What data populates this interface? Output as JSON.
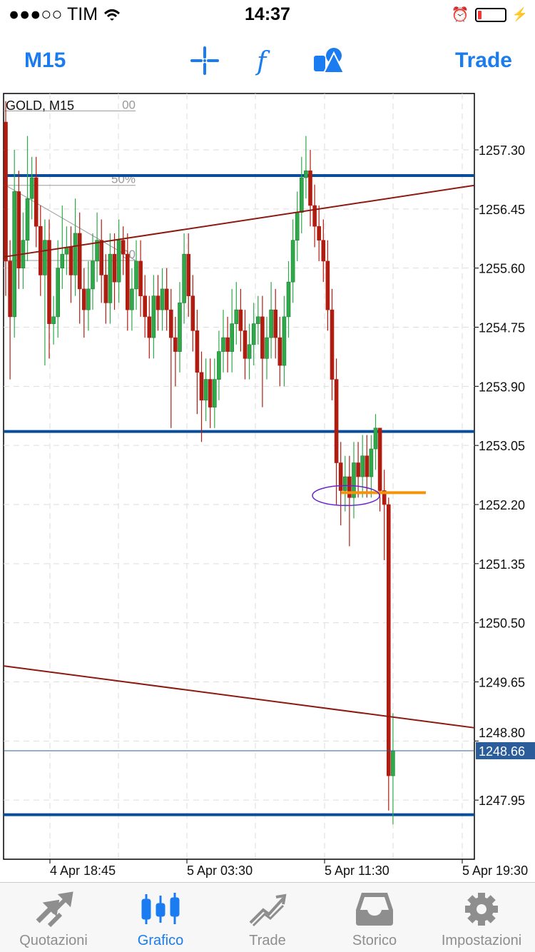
{
  "status": {
    "carrier": "●●●○○ TIM",
    "time": "14:37",
    "battery_percent": 15
  },
  "nav": {
    "timeframe": "M15",
    "trade": "Trade",
    "icons": [
      "crosshair-icon",
      "indicator-f-icon",
      "objects-icon"
    ]
  },
  "chart": {
    "symbol_label": "GOLD, M15",
    "colors": {
      "bull": "#2eaa4a",
      "bear": "#b01c10",
      "hline": "#0a4d9a",
      "trend": "#8b1a10",
      "current": "#2a5d9a",
      "orange": "#f5940a"
    },
    "price_labels": [
      "1257.30",
      "1256.45",
      "1255.60",
      "1254.75",
      "1253.90",
      "1253.05",
      "1252.20",
      "1251.35",
      "1250.50",
      "1249.65",
      "1248.80",
      "1247.95"
    ],
    "time_labels": [
      "4 Apr 18:45",
      "5 Apr 03:30",
      "5 Apr 11:30",
      "5 Apr 19:30"
    ],
    "current_price": "1248.66",
    "first_open": 1257.7,
    "close": [
      1255.7,
      1254.9,
      1256.7,
      1255.6,
      1256.0,
      1256.6,
      1256.9,
      1256.2,
      1255.5,
      1256.0,
      1254.8,
      1254.9,
      1255.6,
      1255.8,
      1255.9,
      1255.5,
      1256.1,
      1255.3,
      1255.0,
      1255.3,
      1255.7,
      1256.0,
      1255.5,
      1255.1,
      1255.8,
      1255.4,
      1256.0,
      1255.8,
      1255.0,
      1255.3,
      1255.7,
      1255.2,
      1254.9,
      1254.6,
      1255.2,
      1255.0,
      1255.3,
      1255.0,
      1254.6,
      1254.4,
      1255.1,
      1255.8,
      1255.2,
      1254.7,
      1254.1,
      1253.7,
      1254.0,
      1253.6,
      1254.0,
      1254.4,
      1254.6,
      1254.4,
      1254.8,
      1255.0,
      1254.7,
      1254.3,
      1254.5,
      1254.8,
      1254.9,
      1254.3,
      1254.6,
      1255.0,
      1254.6,
      1254.2,
      1254.9,
      1255.4,
      1256.0,
      1256.4,
      1256.9,
      1257.0,
      1256.5,
      1256.2,
      1256.0,
      1255.7,
      1255.0,
      1254.0,
      1252.8,
      1252.4,
      1252.6,
      1252.3,
      1252.8,
      1252.6,
      1252.9,
      1252.6,
      1253.0,
      1253.3,
      1252.4,
      1252.2,
      1248.3,
      1248.66
    ],
    "high": [
      1258.0,
      1256.0,
      1257.3,
      1257.0,
      1256.4,
      1257.5,
      1257.2,
      1257.2,
      1256.5,
      1256.3,
      1256.3,
      1255.2,
      1256.0,
      1256.5,
      1256.2,
      1256.2,
      1256.6,
      1256.4,
      1255.6,
      1255.7,
      1256.1,
      1256.4,
      1256.3,
      1255.8,
      1256.1,
      1256.1,
      1256.3,
      1256.2,
      1256.1,
      1255.6,
      1256.0,
      1256.0,
      1255.5,
      1255.2,
      1255.5,
      1255.5,
      1255.6,
      1255.6,
      1255.3,
      1254.9,
      1255.4,
      1256.1,
      1256.1,
      1255.5,
      1255.0,
      1254.4,
      1254.3,
      1254.3,
      1254.3,
      1254.7,
      1255.0,
      1254.9,
      1255.3,
      1255.4,
      1255.3,
      1255.0,
      1254.8,
      1255.1,
      1255.2,
      1255.2,
      1254.9,
      1255.4,
      1255.3,
      1254.9,
      1255.2,
      1255.7,
      1256.3,
      1256.7,
      1257.2,
      1257.5,
      1257.3,
      1256.8,
      1256.5,
      1256.3,
      1256.0,
      1255.3,
      1254.3,
      1253.1,
      1252.9,
      1252.9,
      1253.1,
      1253.1,
      1253.2,
      1253.2,
      1253.2,
      1253.5,
      1253.3,
      1252.7,
      1252.3,
      1249.2
    ],
    "low": [
      1255.2,
      1254.0,
      1254.6,
      1255.3,
      1255.3,
      1255.7,
      1256.3,
      1255.9,
      1255.2,
      1254.2,
      1254.3,
      1254.5,
      1254.6,
      1255.3,
      1255.5,
      1255.1,
      1255.2,
      1254.8,
      1254.6,
      1254.7,
      1255.0,
      1255.4,
      1255.1,
      1254.8,
      1254.8,
      1255.0,
      1255.1,
      1255.5,
      1254.7,
      1254.7,
      1255.0,
      1254.9,
      1254.6,
      1254.3,
      1254.3,
      1254.7,
      1254.7,
      1254.7,
      1253.3,
      1253.9,
      1254.1,
      1254.8,
      1254.9,
      1254.4,
      1253.5,
      1253.1,
      1253.4,
      1253.3,
      1253.3,
      1253.7,
      1254.1,
      1254.1,
      1254.1,
      1254.5,
      1254.4,
      1254.0,
      1254.0,
      1254.2,
      1254.5,
      1253.6,
      1254.0,
      1254.3,
      1254.3,
      1253.9,
      1253.9,
      1254.6,
      1255.1,
      1255.7,
      1256.1,
      1256.6,
      1256.2,
      1255.9,
      1255.7,
      1255.4,
      1254.7,
      1253.7,
      1252.2,
      1251.9,
      1252.1,
      1251.6,
      1252.0,
      1252.3,
      1252.3,
      1252.3,
      1252.3,
      1252.7,
      1252.1,
      1251.4,
      1247.8,
      1247.6
    ],
    "hlines": [
      1256.93,
      1253.25,
      1247.74
    ],
    "trendlines": [
      [
        1255.76,
        1256.79
      ],
      [
        1249.88,
        1248.99
      ]
    ],
    "fib_levels": [
      {
        "label": "00",
        "price": 1257.86
      },
      {
        "label": "50%",
        "price": 1256.79
      },
      {
        "label": "00",
        "price": 1255.71
      }
    ],
    "orange_level": 1252.37
  },
  "tabs": [
    {
      "label": "Quotazioni",
      "icon": "quotes-arrows-icon"
    },
    {
      "label": "Grafico",
      "icon": "candles-icon",
      "active": true
    },
    {
      "label": "Trade",
      "icon": "trade-trend-icon"
    },
    {
      "label": "Storico",
      "icon": "history-tray-icon"
    },
    {
      "label": "Impostazioni",
      "icon": "gear-icon"
    }
  ]
}
